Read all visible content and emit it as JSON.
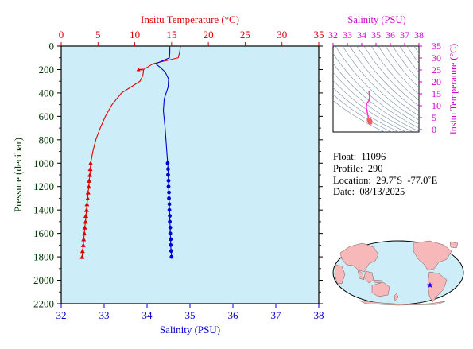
{
  "chart_data": [
    {
      "type": "line",
      "name": "profile",
      "top_axis_label": "Insitu Temperature (°C)",
      "bottom_axis_label": "Salinity (PSU)",
      "left_axis_label": "Pressure (decibar)",
      "temperature_axis": {
        "min": 0,
        "max": 35,
        "ticks": [
          0,
          5,
          10,
          15,
          20,
          25,
          30,
          35
        ]
      },
      "salinity_axis": {
        "min": 32,
        "max": 38,
        "ticks": [
          32,
          33,
          34,
          35,
          36,
          37,
          38
        ]
      },
      "pressure_axis": {
        "min": 0,
        "max": 2200,
        "inverted": true,
        "ticks": [
          0,
          200,
          400,
          600,
          800,
          1000,
          1200,
          1400,
          1600,
          1800,
          2000,
          2200
        ]
      },
      "temperature_color": "#e00000",
      "salinity_color": "#0000d0",
      "plot_background": "#cdeef8",
      "temperature_profile": {
        "pressure": [
          5,
          50,
          100,
          150,
          200,
          250,
          300,
          400,
          500,
          600,
          700,
          800,
          900
        ],
        "temperature": [
          16.2,
          16.1,
          15.9,
          12.5,
          11.2,
          11.1,
          10.7,
          8.2,
          6.9,
          6.0,
          5.3,
          4.7,
          4.3
        ]
      },
      "temperature_samples": {
        "pressure": [
          1000,
          1050,
          1100,
          1150,
          1200,
          1250,
          1300,
          1350,
          1400,
          1450,
          1500,
          1550,
          1600,
          1650,
          1700,
          1750,
          1800
        ],
        "temperature": [
          4.0,
          3.95,
          3.9,
          3.8,
          3.75,
          3.65,
          3.6,
          3.5,
          3.45,
          3.35,
          3.3,
          3.2,
          3.15,
          3.05,
          3.0,
          2.9,
          2.85
        ]
      },
      "temperature_spike": {
        "pressure": 200,
        "temperature": 10.5
      },
      "salinity_profile": {
        "pressure": [
          5,
          50,
          100,
          150,
          180,
          220,
          280,
          350,
          450,
          550,
          700,
          850,
          950
        ],
        "salinity": [
          34.53,
          34.53,
          34.52,
          34.2,
          34.3,
          34.42,
          34.5,
          34.49,
          34.4,
          34.38,
          34.42,
          34.45,
          34.47
        ]
      },
      "salinity_samples": {
        "pressure": [
          1000,
          1050,
          1100,
          1150,
          1200,
          1250,
          1300,
          1350,
          1400,
          1450,
          1500,
          1550,
          1600,
          1650,
          1700,
          1750,
          1800
        ],
        "salinity": [
          34.48,
          34.49,
          34.49,
          34.5,
          34.5,
          34.51,
          34.51,
          34.52,
          34.52,
          34.53,
          34.53,
          34.54,
          34.54,
          34.55,
          34.55,
          34.56,
          34.57
        ]
      }
    },
    {
      "type": "scatter",
      "name": "ts_diagram",
      "top_axis_label": "Salinity (PSU)",
      "right_axis_label": "Insitu Temperature (°C)",
      "salinity_axis": {
        "min": 32,
        "max": 38,
        "ticks": [
          32,
          33,
          34,
          35,
          36,
          37,
          38
        ]
      },
      "temperature_axis": {
        "min": -1,
        "max": 35,
        "ticks": [
          0,
          5,
          10,
          15,
          20,
          25,
          30,
          35
        ]
      },
      "axis_color": "#d000c8",
      "line_color": "#ff33cc",
      "marker_color": "#f06060",
      "curve_line": {
        "salinity": [
          34.5,
          34.52,
          34.55,
          34.5,
          34.35,
          34.33,
          34.4,
          34.45,
          34.48
        ],
        "temperature": [
          16.2,
          15.5,
          13.5,
          12.0,
          11.0,
          9.0,
          7.0,
          5.5,
          4.3
        ]
      },
      "cluster": {
        "salinity": [
          34.5,
          34.52,
          34.55,
          34.57,
          34.6,
          34.53,
          34.58,
          34.62
        ],
        "temperature": [
          4.0,
          3.6,
          3.3,
          3.1,
          2.9,
          4.2,
          3.8,
          3.4
        ]
      }
    }
  ],
  "float_info": {
    "float": "Float:  11096",
    "profile": "Profile:  290",
    "location": "Location:  29.7˚S  -77.0˚E",
    "date": "Date:  08/13/2025"
  },
  "map": {
    "ocean_color": "#cdeef8",
    "land_color": "#f6b8b8",
    "marker_symbol": "★",
    "marker_color": "#0000ff",
    "marker_lon": -77.0,
    "marker_lat": -29.7
  }
}
